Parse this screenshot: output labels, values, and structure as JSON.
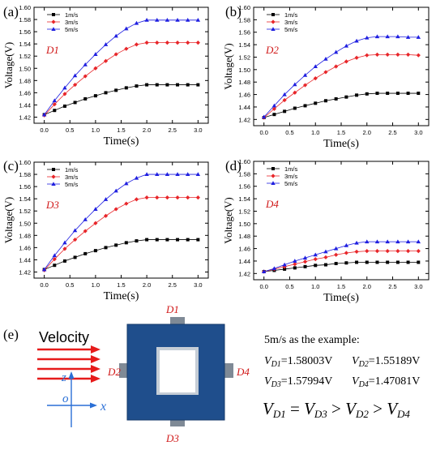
{
  "panels": [
    {
      "letter": "(a)",
      "id_label": "D1",
      "chart_data": {
        "type": "line",
        "title": "",
        "xlabel": "Time(s)",
        "ylabel": "Voltage(V)",
        "xlim": [
          -0.2,
          3.2
        ],
        "ylim": [
          1.41,
          1.6
        ],
        "xticks": [
          "0.0",
          "0.5",
          "1.0",
          "1.5",
          "2.0",
          "2.5",
          "3.0"
        ],
        "yticks": [
          "1.42",
          "1.44",
          "1.46",
          "1.48",
          "1.50",
          "1.52",
          "1.54",
          "1.56",
          "1.58",
          "1.60"
        ],
        "x": [
          0.0,
          0.2,
          0.4,
          0.6,
          0.8,
          1.0,
          1.2,
          1.4,
          1.6,
          1.8,
          2.0,
          2.2,
          2.4,
          2.6,
          2.8,
          3.0
        ],
        "legend_position": "top-left",
        "series": [
          {
            "name": "1m/s",
            "color": "#000000",
            "marker": "square",
            "values": [
              1.424,
              1.431,
              1.438,
              1.444,
              1.45,
              1.455,
              1.46,
              1.464,
              1.468,
              1.471,
              1.473,
              1.473,
              1.473,
              1.473,
              1.473,
              1.473
            ]
          },
          {
            "name": "3m/s",
            "color": "#e8262a",
            "marker": "diamond",
            "values": [
              1.423,
              1.441,
              1.458,
              1.473,
              1.487,
              1.5,
              1.512,
              1.523,
              1.532,
              1.539,
              1.542,
              1.542,
              1.542,
              1.542,
              1.542,
              1.542
            ]
          },
          {
            "name": "5m/s",
            "color": "#1f1fe0",
            "marker": "triangle",
            "values": [
              1.424,
              1.447,
              1.468,
              1.488,
              1.506,
              1.523,
              1.539,
              1.553,
              1.565,
              1.574,
              1.579,
              1.579,
              1.579,
              1.579,
              1.579,
              1.579
            ]
          }
        ]
      }
    },
    {
      "letter": "(b)",
      "id_label": "D2",
      "chart_data": {
        "type": "line",
        "title": "",
        "xlabel": "Time(s)",
        "ylabel": "Voltage(V)",
        "xlim": [
          -0.2,
          3.2
        ],
        "ylim": [
          1.41,
          1.6
        ],
        "xticks": [
          "0.0",
          "0.5",
          "1.0",
          "1.5",
          "2.0",
          "2.5",
          "3.0"
        ],
        "yticks": [
          "1.42",
          "1.44",
          "1.46",
          "1.48",
          "1.50",
          "1.52",
          "1.54",
          "1.56",
          "1.58",
          "1.60"
        ],
        "x": [
          0.0,
          0.2,
          0.4,
          0.6,
          0.8,
          1.0,
          1.2,
          1.4,
          1.6,
          1.8,
          2.0,
          2.2,
          2.4,
          2.6,
          2.8,
          3.0
        ],
        "legend_position": "top-left",
        "series": [
          {
            "name": "1m/s",
            "color": "#000000",
            "marker": "square",
            "values": [
              1.423,
              1.428,
              1.433,
              1.438,
              1.442,
              1.446,
              1.45,
              1.453,
              1.456,
              1.459,
              1.461,
              1.462,
              1.462,
              1.462,
              1.462,
              1.462
            ]
          },
          {
            "name": "3m/s",
            "color": "#e8262a",
            "marker": "diamond",
            "values": [
              1.423,
              1.437,
              1.451,
              1.463,
              1.475,
              1.486,
              1.496,
              1.505,
              1.513,
              1.519,
              1.523,
              1.524,
              1.524,
              1.524,
              1.524,
              1.523
            ]
          },
          {
            "name": "5m/s",
            "color": "#1f1fe0",
            "marker": "triangle",
            "values": [
              1.424,
              1.442,
              1.46,
              1.476,
              1.491,
              1.505,
              1.517,
              1.528,
              1.538,
              1.546,
              1.551,
              1.553,
              1.553,
              1.553,
              1.552,
              1.552
            ]
          }
        ]
      }
    },
    {
      "letter": "(c)",
      "id_label": "D3",
      "chart_data": {
        "type": "line",
        "title": "",
        "xlabel": "Time(s)",
        "ylabel": "Voltage(V)",
        "xlim": [
          -0.2,
          3.2
        ],
        "ylim": [
          1.41,
          1.6
        ],
        "xticks": [
          "0.0",
          "0.5",
          "1.0",
          "1.5",
          "2.0",
          "2.5",
          "3.0"
        ],
        "yticks": [
          "1.42",
          "1.44",
          "1.46",
          "1.48",
          "1.50",
          "1.52",
          "1.54",
          "1.56",
          "1.58",
          "1.60"
        ],
        "x": [
          0.0,
          0.2,
          0.4,
          0.6,
          0.8,
          1.0,
          1.2,
          1.4,
          1.6,
          1.8,
          2.0,
          2.2,
          2.4,
          2.6,
          2.8,
          3.0
        ],
        "legend_position": "top-left",
        "series": [
          {
            "name": "1m/s",
            "color": "#000000",
            "marker": "square",
            "values": [
              1.424,
              1.431,
              1.438,
              1.444,
              1.45,
              1.455,
              1.46,
              1.464,
              1.468,
              1.471,
              1.473,
              1.473,
              1.473,
              1.473,
              1.473,
              1.473
            ]
          },
          {
            "name": "3m/s",
            "color": "#e8262a",
            "marker": "diamond",
            "values": [
              1.423,
              1.441,
              1.458,
              1.473,
              1.487,
              1.5,
              1.512,
              1.523,
              1.532,
              1.539,
              1.542,
              1.542,
              1.542,
              1.542,
              1.542,
              1.542
            ]
          },
          {
            "name": "5m/s",
            "color": "#1f1fe0",
            "marker": "triangle",
            "values": [
              1.424,
              1.447,
              1.468,
              1.488,
              1.506,
              1.523,
              1.539,
              1.553,
              1.565,
              1.574,
              1.58,
              1.58,
              1.58,
              1.58,
              1.58,
              1.58
            ]
          }
        ]
      }
    },
    {
      "letter": "(d)",
      "id_label": "D4",
      "chart_data": {
        "type": "line",
        "title": "",
        "xlabel": "Time(s)",
        "ylabel": "Voltage(V)",
        "xlim": [
          -0.2,
          3.2
        ],
        "ylim": [
          1.41,
          1.6
        ],
        "xticks": [
          "0.0",
          "0.5",
          "1.0",
          "1.5",
          "2.0",
          "2.5",
          "3.0"
        ],
        "yticks": [
          "1.42",
          "1.44",
          "1.46",
          "1.48",
          "1.50",
          "1.52",
          "1.54",
          "1.56",
          "1.58",
          "1.60"
        ],
        "x": [
          0.0,
          0.2,
          0.4,
          0.6,
          0.8,
          1.0,
          1.2,
          1.4,
          1.6,
          1.8,
          2.0,
          2.2,
          2.4,
          2.6,
          2.8,
          3.0
        ],
        "legend_position": "top-left",
        "series": [
          {
            "name": "1m/s",
            "color": "#000000",
            "marker": "square",
            "values": [
              1.423,
              1.425,
              1.427,
              1.429,
              1.431,
              1.433,
              1.434,
              1.436,
              1.437,
              1.438,
              1.438,
              1.438,
              1.438,
              1.438,
              1.438,
              1.438
            ]
          },
          {
            "name": "3m/s",
            "color": "#e8262a",
            "marker": "diamond",
            "values": [
              1.423,
              1.427,
              1.431,
              1.435,
              1.439,
              1.443,
              1.446,
              1.45,
              1.453,
              1.455,
              1.456,
              1.456,
              1.456,
              1.456,
              1.456,
              1.456
            ]
          },
          {
            "name": "5m/s",
            "color": "#1f1fe0",
            "marker": "triangle",
            "values": [
              1.423,
              1.428,
              1.434,
              1.44,
              1.445,
              1.45,
              1.455,
              1.46,
              1.465,
              1.469,
              1.471,
              1.471,
              1.471,
              1.471,
              1.471,
              1.471
            ]
          }
        ]
      }
    }
  ],
  "panel_e": {
    "letter": "(e)",
    "velocity_label": "Velocity",
    "axis_z": "z",
    "axis_o": "o",
    "axis_x": "x",
    "side_labels": {
      "top": "D1",
      "left": "D2",
      "bottom": "D3",
      "right": "D4"
    },
    "example_title": "5m/s as the example:",
    "values": [
      {
        "name": "V",
        "sub": "D1",
        "value": "=1.58003V"
      },
      {
        "name": "V",
        "sub": "D2",
        "value": "=1.55189V"
      },
      {
        "name": "V",
        "sub": "D3",
        "value": "=1.57994V"
      },
      {
        "name": "V",
        "sub": "D4",
        "value": "=1.47081V"
      }
    ],
    "relation": [
      {
        "sub": "D1",
        "op": " = "
      },
      {
        "sub": "D3",
        "op": " > "
      },
      {
        "sub": "D2",
        "op": " > "
      },
      {
        "sub": "D4",
        "op": ""
      }
    ],
    "colors": {
      "arrow": "#e61b1b",
      "label_red": "#d01818",
      "block": "#1f4e8c",
      "axis": "#2a6fd6"
    }
  }
}
